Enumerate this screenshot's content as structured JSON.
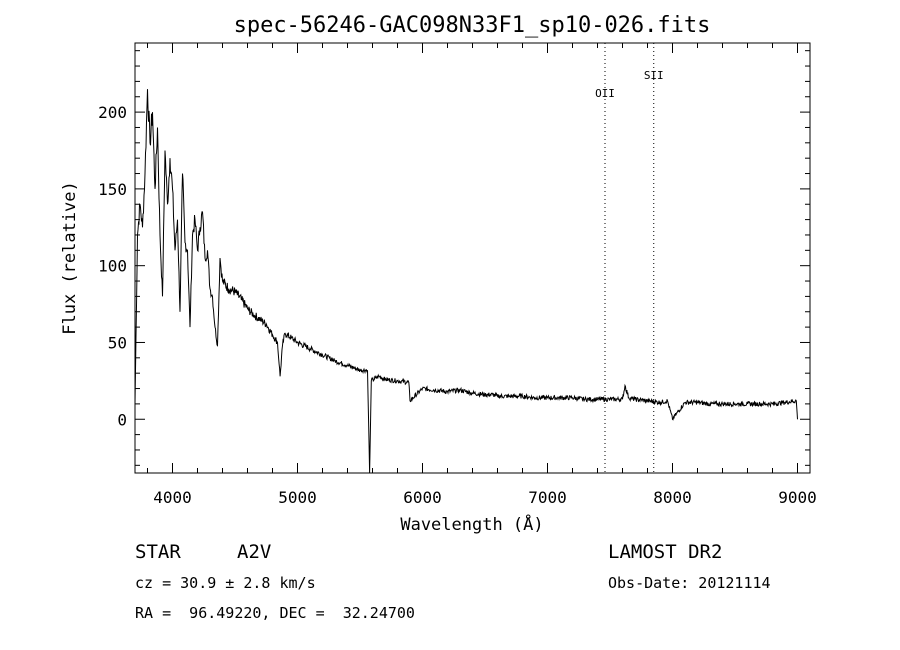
{
  "chart_data": {
    "type": "line",
    "title": "spec-56246-GAC098N33F1_sp10-026.fits",
    "xlabel": "Wavelength (Å)",
    "ylabel": "Flux (relative)",
    "xlim": [
      3700,
      9100
    ],
    "ylim": [
      -35,
      245
    ],
    "x_ticks": [
      4000,
      5000,
      6000,
      7000,
      8000,
      9000
    ],
    "y_ticks": [
      0,
      50,
      100,
      150,
      200
    ],
    "grid": false,
    "series": [
      {
        "x": [
          3700,
          3720,
          3740,
          3760,
          3780,
          3800,
          3820,
          3840,
          3860,
          3880,
          3900,
          3920,
          3940,
          3960,
          3980,
          4000,
          4020,
          4040,
          4060,
          4080,
          4100,
          4120,
          4140,
          4160,
          4180,
          4200,
          4220,
          4240,
          4260,
          4280,
          4300,
          4320,
          4340,
          4360,
          4380,
          4400,
          4450,
          4500,
          4550,
          4600,
          4650,
          4700,
          4750,
          4800,
          4840,
          4861,
          4880,
          4900,
          4950,
          5000,
          5100,
          5200,
          5300,
          5400,
          5500,
          5560,
          5577,
          5590,
          5650,
          5700,
          5800,
          5890,
          5900,
          6000,
          6100,
          6200,
          6300,
          6400,
          6500,
          6563,
          6600,
          6700,
          6800,
          6900,
          7000,
          7100,
          7200,
          7300,
          7400,
          7500,
          7600,
          7620,
          7650,
          7700,
          7800,
          7900,
          7960,
          8000,
          8100,
          8200,
          8300,
          8400,
          8500,
          8600,
          8700,
          8800,
          8900,
          8990,
          9000
        ],
        "y": [
          10,
          120,
          140,
          125,
          160,
          215,
          180,
          200,
          150,
          190,
          120,
          80,
          175,
          140,
          170,
          150,
          110,
          130,
          70,
          160,
          115,
          110,
          60,
          120,
          130,
          110,
          125,
          135,
          105,
          110,
          85,
          80,
          60,
          48,
          105,
          90,
          85,
          83,
          78,
          72,
          68,
          65,
          62,
          55,
          50,
          28,
          48,
          56,
          53,
          50,
          46,
          42,
          38,
          35,
          32,
          32,
          -35,
          25,
          28,
          26,
          25,
          24,
          12,
          20,
          19,
          18,
          19,
          17,
          16,
          16,
          15,
          15,
          15,
          14,
          14,
          14,
          14,
          13,
          13,
          13,
          13,
          22,
          14,
          13,
          12,
          11,
          12,
          0,
          11,
          11,
          10,
          10,
          10,
          10,
          10,
          10,
          11,
          12,
          0
        ]
      }
    ],
    "annotations": [
      {
        "label": "OII",
        "x": 7460
      },
      {
        "label": "SII",
        "x": 7850
      }
    ]
  },
  "info": {
    "object_class": "STAR",
    "subclass": "A2V",
    "survey": "LAMOST DR2",
    "cz": "cz = 30.9 ± 2.8 km/s",
    "coords": "RA =  96.49220, DEC =  32.24700",
    "obs_date": "Obs-Date: 20121114"
  }
}
